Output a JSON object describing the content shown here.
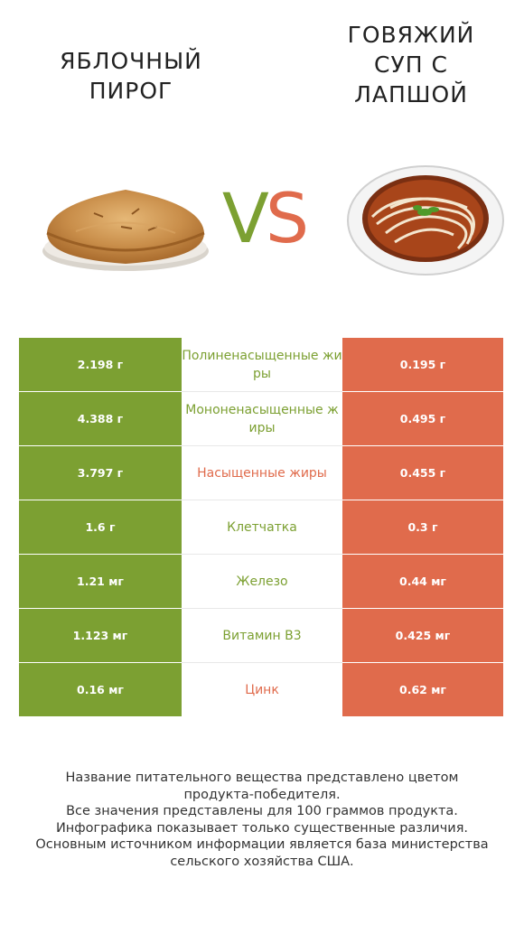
{
  "left_food": {
    "title_lines": [
      "ЯБЛОЧНЫЙ",
      "ПИРОГ"
    ],
    "image": "apple-pie"
  },
  "right_food": {
    "title_lines": [
      "ГОВЯЖИЙ",
      "СУП С",
      "ЛАПШОЙ"
    ],
    "image": "beef-noodle-soup"
  },
  "vs": {
    "v": "V",
    "s": "S"
  },
  "colors": {
    "left": "#7ca032",
    "right": "#e06b4c"
  },
  "rows": [
    {
      "left": "2.198 г",
      "name": "Полиненасыщенные жиры",
      "right": "0.195 г",
      "winner": "left"
    },
    {
      "left": "4.388 г",
      "name": "Мононенасыщенные жиры",
      "right": "0.495 г",
      "winner": "left"
    },
    {
      "left": "3.797 г",
      "name": "Насыщенные жиры",
      "right": "0.455 г",
      "winner": "right"
    },
    {
      "left": "1.6 г",
      "name": "Клетчатка",
      "right": "0.3 г",
      "winner": "left"
    },
    {
      "left": "1.21 мг",
      "name": "Железо",
      "right": "0.44 мг",
      "winner": "left"
    },
    {
      "left": "1.123 мг",
      "name": "Витамин B3",
      "right": "0.425 мг",
      "winner": "left"
    },
    {
      "left": "0.16 мг",
      "name": "Цинк",
      "right": "0.62 мг",
      "winner": "right"
    }
  ],
  "footer": [
    "Название питательного вещества представлено цветом",
    "продукта-победителя.",
    "Все значения представлены для 100 граммов продукта.",
    "Инфографика показывает только существенные различия.",
    "Основным источником информации является база министерства",
    "сельского хозяйства США."
  ]
}
